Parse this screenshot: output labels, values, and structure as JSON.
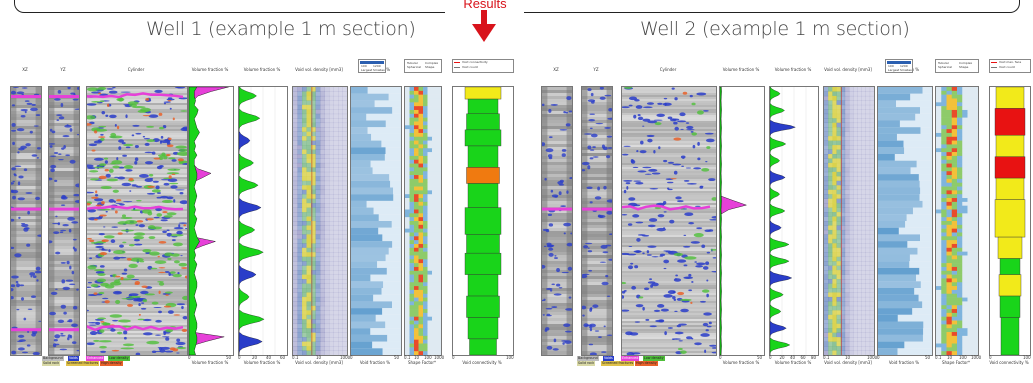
{
  "header": {
    "results_label": "Results"
  },
  "wells": [
    {
      "title": "Well 1 (example 1 m section)",
      "column_headers": [
        "XZ",
        "YZ",
        "Cylinder",
        "Volume fraction %",
        "Volume fraction %",
        "Void vol. density [mm3]",
        "Void fraction %",
        "Shape Factor*",
        "Void connectivity %"
      ],
      "column_footers": [
        "Volume fraction %",
        "Volume fraction %",
        "Void vol. density [mm3]",
        "Void fraction %",
        "Shape Factor*",
        "Void connectivity %"
      ],
      "axis_ticks": {
        "vf1": [
          "0",
          "50"
        ],
        "vf2": [
          "0",
          "20",
          "40",
          "60"
        ],
        "density": [
          "0.1",
          "10",
          "1000"
        ],
        "void": [
          "0",
          "50"
        ],
        "shape": [
          "0.1",
          "10",
          "100",
          "1000"
        ],
        "conn": [
          "0",
          "100"
        ]
      },
      "legend": [
        "Background",
        "Voids",
        "Enhanced",
        "Low density",
        "Solid rock",
        "Screened fractures",
        "High density"
      ],
      "mini_legend_density": [
        "100",
        "1200",
        "Largest",
        "Smallest"
      ],
      "mini_legend_shape": [
        "Tubular",
        "Complex",
        "Spherical",
        "Shape"
      ],
      "mini_legend_conn": [
        "Void connectivity",
        "Void count"
      ]
    },
    {
      "title": "Well 2 (example 1 m section)",
      "column_headers": [
        "XZ",
        "YZ",
        "Cylinder",
        "Volume fraction %",
        "Volume fraction %",
        "Void vol. density [mm3]",
        "Void fraction %",
        "Shape Factor*",
        "Void connectivity"
      ],
      "column_footers": [
        "Volume fraction %",
        "Volume fraction %",
        "Void vol. density [mm3]",
        "Void fraction %",
        "Shape Factor*",
        "Void connectivity %"
      ],
      "axis_ticks": {
        "vf1": [
          "0",
          "50"
        ],
        "vf2": [
          "0",
          "20",
          "40",
          "60",
          "80"
        ],
        "density": [
          "0.1",
          "10",
          "1000"
        ],
        "void": [
          "0",
          "50"
        ],
        "shape": [
          "0.1",
          "10",
          "100",
          "1000"
        ],
        "conn": [
          "0",
          "100"
        ]
      },
      "legend": [
        "Background",
        "Voids",
        "Enhanced",
        "Low density",
        "Solid rock",
        "Screened fractures",
        "High density"
      ],
      "mini_legend_density": [
        "100",
        "1200",
        "Largest",
        "Smallest"
      ],
      "mini_legend_shape": [
        "Tubular",
        "Complex",
        "Spherical",
        "Shape"
      ],
      "mini_legend_conn": [
        "Void max. face",
        "Void count"
      ]
    }
  ],
  "colors": {
    "accent_red": "#d8131b",
    "voids": "#2a3dc9",
    "enhanced": "#e640d8",
    "low_density": "#4fbf3a",
    "high_density": "#e8622a",
    "conn_yellow": "#f2ea1a",
    "conn_green": "#19d41a",
    "conn_red": "#e81212",
    "conn_orange": "#f07a10"
  },
  "well1_series": {
    "vf_magenta": [
      0.9,
      0.5,
      0.2,
      0.1,
      0.05,
      0.05,
      0.05,
      0.08,
      0.1,
      0.15,
      0.2,
      0.1,
      0.05,
      0.05,
      0.08,
      0.05,
      0.05,
      0.1,
      0.2,
      0.5,
      0.3,
      0.08,
      0.05,
      0.05,
      0.05,
      0.08,
      0.1,
      0.08,
      0.05,
      0.05,
      0.05,
      0.05,
      0.08,
      0.1,
      0.6,
      0.3,
      0.05,
      0.05,
      0.05,
      0.05,
      0.05,
      0.05,
      0.05,
      0.05,
      0.05,
      0.05,
      0.05,
      0.08,
      0.1,
      0.05,
      0.05,
      0.05,
      0.05,
      0.05,
      0.1,
      0.8,
      0.4,
      0.05,
      0.05,
      0.05
    ],
    "vf_green": [
      0.3,
      0.2,
      0.2,
      0.25,
      0.2,
      0.35,
      0.3,
      0.2,
      0.25,
      0.3,
      0.4,
      0.3,
      0.2,
      0.25,
      0.2,
      0.3,
      0.2,
      0.2,
      0.25,
      0.3,
      0.3,
      0.25,
      0.2,
      0.25,
      0.3,
      0.25,
      0.2,
      0.25,
      0.2,
      0.3,
      0.25,
      0.2,
      0.25,
      0.3,
      0.4,
      0.3,
      0.2,
      0.25,
      0.2,
      0.3,
      0.25,
      0.2,
      0.25,
      0.3,
      0.3,
      0.25,
      0.2,
      0.25,
      0.3,
      0.25,
      0.2,
      0.25,
      0.3,
      0.3,
      0.25,
      0.3,
      0.3,
      0.25,
      0.2,
      0.25
    ],
    "conn_blocks": [
      {
        "start": 0.0,
        "end": 0.045,
        "value": 0.6,
        "color": "conn_yellow"
      },
      {
        "start": 0.045,
        "end": 0.1,
        "value": 0.5,
        "color": "conn_green"
      },
      {
        "start": 0.1,
        "end": 0.16,
        "value": 0.55,
        "color": "conn_green"
      },
      {
        "start": 0.16,
        "end": 0.22,
        "value": 0.6,
        "color": "conn_green"
      },
      {
        "start": 0.22,
        "end": 0.3,
        "value": 0.5,
        "color": "conn_green"
      },
      {
        "start": 0.3,
        "end": 0.36,
        "value": 0.55,
        "color": "conn_orange"
      },
      {
        "start": 0.36,
        "end": 0.45,
        "value": 0.5,
        "color": "conn_green"
      },
      {
        "start": 0.45,
        "end": 0.55,
        "value": 0.6,
        "color": "conn_green"
      },
      {
        "start": 0.55,
        "end": 0.62,
        "value": 0.55,
        "color": "conn_green"
      },
      {
        "start": 0.62,
        "end": 0.7,
        "value": 0.6,
        "color": "conn_green"
      },
      {
        "start": 0.7,
        "end": 0.78,
        "value": 0.5,
        "color": "conn_green"
      },
      {
        "start": 0.78,
        "end": 0.86,
        "value": 0.55,
        "color": "conn_green"
      },
      {
        "start": 0.86,
        "end": 0.94,
        "value": 0.5,
        "color": "conn_green"
      },
      {
        "start": 0.94,
        "end": 1.0,
        "value": 0.45,
        "color": "conn_green"
      }
    ]
  },
  "well2_series": {
    "vf_magenta": [
      0.02,
      0.02,
      0.02,
      0.02,
      0.02,
      0.02,
      0.02,
      0.02,
      0.02,
      0.02,
      0.02,
      0.02,
      0.02,
      0.02,
      0.02,
      0.02,
      0.02,
      0.02,
      0.02,
      0.02,
      0.02,
      0.02,
      0.02,
      0.02,
      0.02,
      0.3,
      0.6,
      0.2,
      0.02,
      0.02,
      0.02,
      0.02,
      0.02,
      0.02,
      0.02,
      0.02,
      0.02,
      0.02,
      0.02,
      0.02,
      0.02,
      0.02,
      0.02,
      0.02,
      0.02,
      0.02,
      0.02,
      0.02,
      0.02,
      0.02,
      0.02,
      0.02,
      0.02,
      0.02,
      0.02,
      0.02,
      0.02,
      0.02,
      0.02,
      0.02
    ],
    "vf_green": [
      0.05,
      0.06,
      0.05,
      0.04,
      0.05,
      0.06,
      0.05,
      0.04,
      0.05,
      0.06,
      0.05,
      0.04,
      0.05,
      0.06,
      0.05,
      0.04,
      0.05,
      0.06,
      0.05,
      0.04,
      0.05,
      0.06,
      0.05,
      0.04,
      0.05,
      0.06,
      0.05,
      0.04,
      0.05,
      0.06,
      0.05,
      0.04,
      0.05,
      0.06,
      0.05,
      0.04,
      0.05,
      0.06,
      0.05,
      0.04,
      0.05,
      0.06,
      0.05,
      0.04,
      0.05,
      0.06,
      0.05,
      0.04,
      0.05,
      0.06,
      0.05,
      0.04,
      0.05,
      0.06,
      0.05,
      0.04,
      0.05,
      0.06,
      0.05,
      0.04
    ],
    "conn_blocks": [
      {
        "start": 0.0,
        "end": 0.08,
        "value": 0.7,
        "color": "conn_yellow"
      },
      {
        "start": 0.08,
        "end": 0.18,
        "value": 0.75,
        "color": "conn_red"
      },
      {
        "start": 0.18,
        "end": 0.26,
        "value": 0.7,
        "color": "conn_yellow"
      },
      {
        "start": 0.26,
        "end": 0.34,
        "value": 0.75,
        "color": "conn_red"
      },
      {
        "start": 0.34,
        "end": 0.42,
        "value": 0.7,
        "color": "conn_yellow"
      },
      {
        "start": 0.42,
        "end": 0.56,
        "value": 0.75,
        "color": "conn_yellow"
      },
      {
        "start": 0.56,
        "end": 0.64,
        "value": 0.6,
        "color": "conn_yellow"
      },
      {
        "start": 0.64,
        "end": 0.7,
        "value": 0.5,
        "color": "conn_green"
      },
      {
        "start": 0.7,
        "end": 0.78,
        "value": 0.55,
        "color": "conn_yellow"
      },
      {
        "start": 0.78,
        "end": 0.86,
        "value": 0.5,
        "color": "conn_green"
      },
      {
        "start": 0.86,
        "end": 1.0,
        "value": 0.45,
        "color": "conn_green"
      }
    ]
  }
}
